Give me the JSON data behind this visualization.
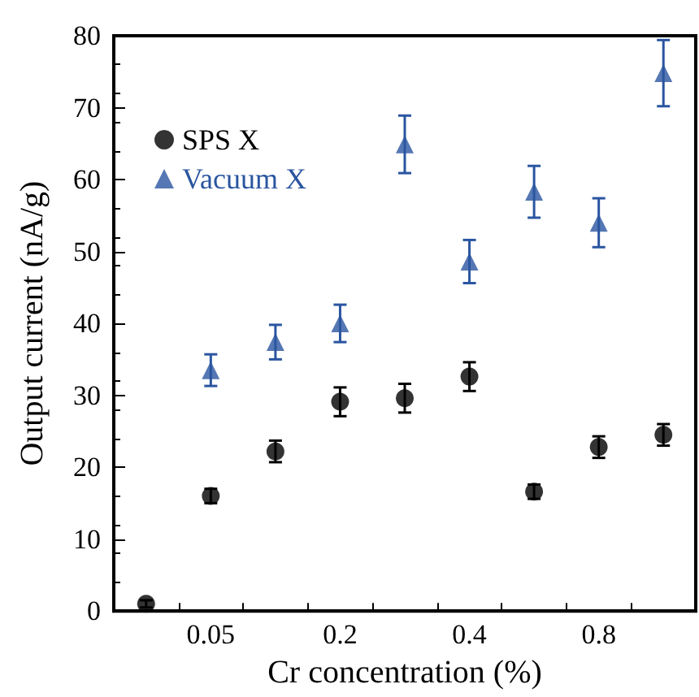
{
  "chart_data": {
    "type": "scatter",
    "xlabel": "Cr concentration (%)",
    "ylabel": "Output current (nA/g)",
    "categories": [
      null,
      "0.05",
      null,
      "0.2",
      null,
      "0.4",
      null,
      "0.8",
      null
    ],
    "ylim": [
      0,
      80
    ],
    "yticks": [
      0,
      10,
      20,
      30,
      40,
      50,
      60,
      70,
      80
    ],
    "grid": false,
    "legend": "top left",
    "series": [
      {
        "name": "SPS X",
        "color": "#000000",
        "marker": "circle",
        "values": [
          1,
          16,
          22.2,
          29.1,
          29.6,
          32.6,
          16.6,
          22.8,
          24.5
        ],
        "errors": [
          0.5,
          1,
          1.5,
          2,
          2,
          2,
          1,
          1.5,
          1.5
        ]
      },
      {
        "name": "Vacuum X",
        "color": "#2a55a0",
        "marker": "triangle",
        "values": [
          null,
          33.5,
          37.4,
          40,
          64.9,
          48.6,
          58.3,
          54,
          74.8
        ],
        "errors": [
          null,
          2.2,
          2.4,
          2.6,
          4,
          3,
          3.6,
          3.4,
          4.6
        ]
      }
    ]
  }
}
